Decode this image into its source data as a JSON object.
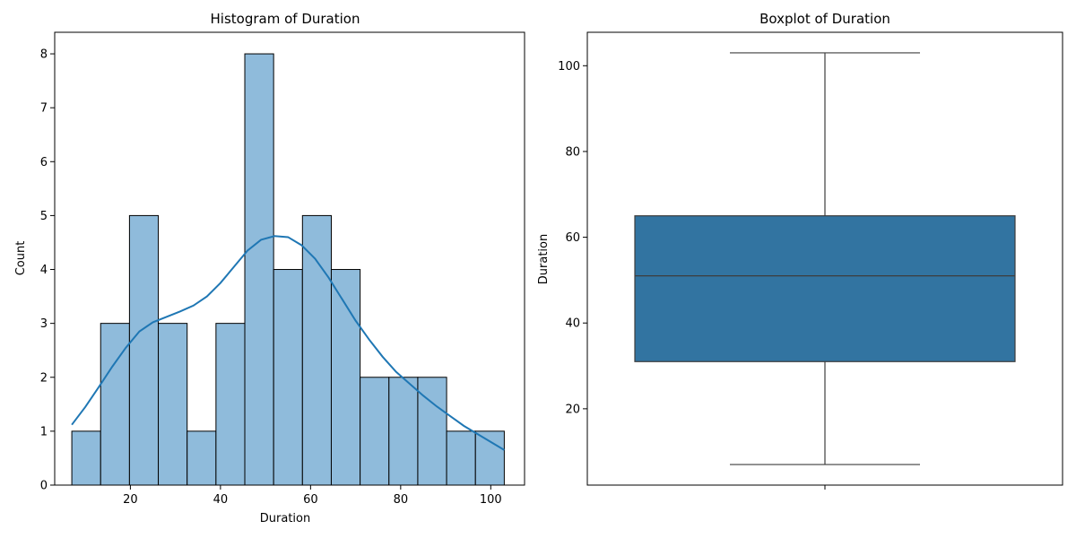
{
  "chart_data": [
    {
      "type": "bar",
      "title": "Histogram of Duration",
      "xlabel": "Duration",
      "ylabel": "Count",
      "xlim": [
        3.2,
        107.5
      ],
      "ylim": [
        0,
        8.4
      ],
      "xticks": [
        20,
        40,
        60,
        80,
        100
      ],
      "yticks": [
        0,
        1,
        2,
        3,
        4,
        5,
        6,
        7,
        8
      ],
      "bin_edges": [
        7,
        13.4,
        19.8,
        26.2,
        32.6,
        39,
        45.4,
        51.8,
        58.2,
        64.6,
        71,
        77.4,
        83.8,
        90.2,
        96.6,
        103
      ],
      "values": [
        1,
        3,
        5,
        3,
        1,
        3,
        8,
        4,
        5,
        4,
        2,
        2,
        2,
        1,
        1
      ],
      "bar_color": "#8fbbdb",
      "edge_color": "#000000",
      "kde": {
        "color": "#1f77b4",
        "x": [
          7,
          10,
          13,
          16,
          19,
          22,
          25,
          28,
          31,
          34,
          37,
          40,
          43,
          46,
          49,
          52,
          55,
          58,
          61,
          64,
          67,
          70,
          73,
          76,
          79,
          82,
          85,
          88,
          91,
          94,
          97,
          100,
          103
        ],
        "y": [
          1.12,
          1.45,
          1.82,
          2.2,
          2.55,
          2.85,
          3.02,
          3.12,
          3.22,
          3.33,
          3.5,
          3.75,
          4.05,
          4.35,
          4.55,
          4.62,
          4.6,
          4.45,
          4.2,
          3.85,
          3.45,
          3.05,
          2.7,
          2.38,
          2.1,
          1.88,
          1.66,
          1.46,
          1.28,
          1.1,
          0.95,
          0.8,
          0.65
        ]
      }
    },
    {
      "type": "box",
      "title": "Boxplot of Duration",
      "xlabel": "",
      "ylabel": "Duration",
      "ylim": [
        2.2,
        107.8
      ],
      "yticks": [
        20,
        40,
        60,
        80,
        100
      ],
      "box": {
        "min": 7,
        "q1": 31,
        "median": 51,
        "q3": 65,
        "max": 103
      },
      "box_color": "#3274a1",
      "line_color": "#3d3d3d"
    }
  ]
}
